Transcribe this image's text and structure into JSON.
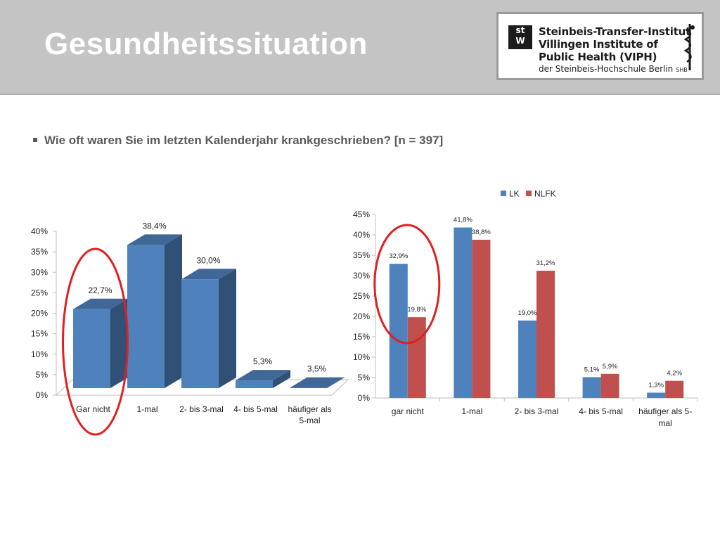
{
  "header": {
    "title": "Gesundheitssituation",
    "logo": {
      "mark_line1": "st",
      "mark_line2": "W",
      "line1": "Steinbeis-Transfer-Institut",
      "line2": "Villingen Institute of",
      "line3": "Public Health (VIPH)",
      "line4": "der Steinbeis-Hochschule Berlin",
      "line4_suffix": "SHB"
    }
  },
  "question": "Wie oft waren Sie im letzten Kalenderjahr krankgeschrieben? [n = 397]",
  "colors": {
    "lk": "#4f81bd",
    "nlfk": "#c0504d",
    "highlight": "#e02020",
    "header": "#c4c4c4"
  },
  "chart_data": [
    {
      "type": "bar",
      "style": "3d",
      "categories": [
        "Gar nicht",
        "1-mal",
        "2- bis 3-mal",
        "4- bis 5-mal",
        "häufiger als 5-mal"
      ],
      "category_lines": [
        [
          "Gar nicht"
        ],
        [
          "1-mal"
        ],
        [
          "2- bis 3-mal"
        ],
        [
          "4- bis 5-mal"
        ],
        [
          "häufiger als",
          "5-mal"
        ]
      ],
      "values": [
        22.7,
        38.4,
        30.0,
        5.3,
        3.5
      ],
      "value_labels": [
        "22,7%",
        "38,4%",
        "30,0%",
        "5,3%",
        "3,5%"
      ],
      "ylim": [
        0,
        40
      ],
      "yticks": [
        "0%",
        "5%",
        "10%",
        "15%",
        "20%",
        "25%",
        "30%",
        "35%",
        "40%"
      ],
      "highlight_category": "Gar nicht"
    },
    {
      "type": "bar",
      "categories": [
        "gar nicht",
        "1-mal",
        "2- bis 3-mal",
        "4- bis 5-mal",
        "häufiger als 5-mal"
      ],
      "category_lines": [
        [
          "gar nicht"
        ],
        [
          "1-mal"
        ],
        [
          "2- bis 3-mal"
        ],
        [
          "4- bis 5-mal"
        ],
        [
          "häufiger als 5-",
          "mal"
        ]
      ],
      "series": [
        {
          "name": "LK",
          "values": [
            32.9,
            41.8,
            19.0,
            5.1,
            1.3
          ],
          "labels": [
            "32,9%",
            "41,8%",
            "19,0%",
            "5,1%",
            "1,3%"
          ]
        },
        {
          "name": "NLFK",
          "values": [
            19.8,
            38.8,
            31.2,
            5.9,
            4.2
          ],
          "labels": [
            "19,8%",
            "38,8%",
            "31,2%",
            "5,9%",
            "4,2%"
          ]
        }
      ],
      "ylim": [
        0,
        45
      ],
      "yticks": [
        "0%",
        "5%",
        "10%",
        "15%",
        "20%",
        "25%",
        "30%",
        "35%",
        "40%",
        "45%"
      ],
      "legend": "top",
      "highlight_category": "gar nicht"
    }
  ]
}
